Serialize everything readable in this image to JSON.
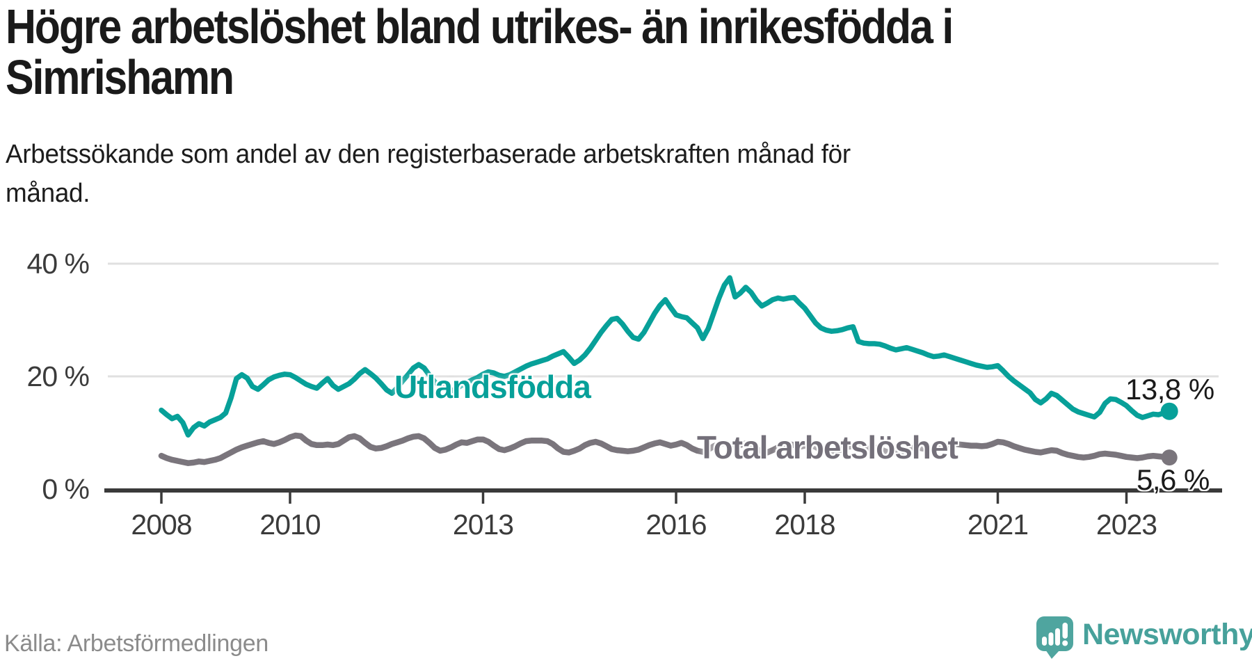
{
  "header": {
    "title_lines": [
      "Högre arbetslöshet bland utrikes- än inrikesfödda i",
      "Simrishamn"
    ],
    "subtitle_lines": [
      "Arbetssökande som andel av den registerbaserade arbetskraften månad för",
      "månad."
    ]
  },
  "footer": {
    "source": "Källa: Arbetsförmedlingen",
    "brand_name": "Newsworthy",
    "brand_icon": "newsworthy-speech-bubble-bar-chart-icon"
  },
  "colors": {
    "series_foreign_born": "#07a099",
    "series_total": "#7a757c",
    "axis": "#3a3a3a",
    "grid": "#e0e0e0",
    "brand_teal": "#4fa59f",
    "text_dark": "#1a1a1a",
    "text_gray": "#8b8b8b"
  },
  "chart_data": {
    "type": "line",
    "title": "Högre arbetslöshet bland utrikes- än inrikesfödda i Simrishamn",
    "subtitle": "Arbetssökande som andel av den registerbaserade arbetskraften månad för månad.",
    "x_unit": "month",
    "x_start": "2008-01",
    "x_end": "2023-09",
    "x_tick_years": [
      2008,
      2010,
      2013,
      2016,
      2018,
      2021,
      2023
    ],
    "y_tick_values": [
      0,
      20,
      40
    ],
    "y_tick_labels": [
      "0 %",
      "20 %",
      "40 %"
    ],
    "ylim": [
      0,
      45
    ],
    "grid": "horizontal",
    "legend": "inline-labels",
    "series": [
      {
        "name": "Utlandsfödda",
        "color": "#07a099",
        "end_label": "13,8 %",
        "end_value": 13.8,
        "values": [
          14.0,
          13.2,
          12.5,
          12.9,
          11.8,
          9.6,
          10.9,
          11.6,
          11.2,
          11.9,
          12.3,
          12.7,
          13.5,
          16.2,
          19.6,
          20.3,
          19.7,
          18.2,
          17.7,
          18.5,
          19.4,
          19.9,
          20.2,
          20.4,
          20.3,
          19.8,
          19.2,
          18.6,
          18.2,
          17.9,
          18.8,
          19.6,
          18.4,
          17.7,
          18.2,
          18.7,
          19.5,
          20.5,
          21.2,
          20.5,
          19.7,
          18.7,
          17.6,
          17.0,
          18.0,
          19.2,
          20.3,
          21.5,
          22.1,
          21.5,
          20.2,
          19.0,
          18.3,
          17.8,
          17.4,
          17.8,
          18.4,
          18.9,
          19.4,
          19.8,
          20.4,
          20.8,
          20.6,
          20.2,
          20.0,
          20.3,
          20.8,
          21.3,
          21.8,
          22.2,
          22.5,
          22.8,
          23.1,
          23.6,
          24.0,
          24.4,
          23.4,
          22.3,
          22.9,
          23.8,
          25.0,
          26.4,
          27.8,
          29.0,
          30.1,
          30.3,
          29.3,
          28.0,
          26.9,
          26.6,
          27.8,
          29.5,
          31.2,
          32.6,
          33.6,
          32.2,
          30.9,
          30.6,
          30.4,
          29.5,
          28.6,
          26.7,
          28.5,
          31.2,
          33.9,
          36.2,
          37.5,
          34.1,
          34.8,
          35.8,
          34.9,
          33.5,
          32.5,
          33.0,
          33.6,
          33.9,
          33.7,
          33.9,
          34.0,
          33.0,
          32.1,
          30.8,
          29.5,
          28.6,
          28.2,
          28.0,
          28.1,
          28.3,
          28.6,
          28.8,
          26.2,
          25.9,
          25.8,
          25.8,
          25.7,
          25.4,
          25.0,
          24.7,
          24.9,
          25.1,
          24.8,
          24.5,
          24.2,
          23.8,
          23.5,
          23.6,
          23.8,
          23.5,
          23.2,
          22.9,
          22.6,
          22.3,
          22.0,
          21.8,
          21.6,
          21.7,
          21.9,
          21.0,
          20.0,
          19.2,
          18.5,
          17.8,
          17.1,
          15.9,
          15.3,
          16.0,
          17.0,
          16.6,
          15.8,
          15.0,
          14.2,
          13.7,
          13.4,
          13.1,
          12.8,
          13.6,
          15.2,
          16.0,
          15.9,
          15.4,
          14.8,
          13.9,
          13.1,
          12.7,
          13.0,
          13.3,
          13.2,
          13.5,
          13.8
        ]
      },
      {
        "name": "Total arbetslöshet",
        "color": "#7a757c",
        "end_label": "5,6 %",
        "end_value": 5.6,
        "values": [
          5.9,
          5.5,
          5.2,
          5.0,
          4.8,
          4.6,
          4.7,
          4.9,
          4.8,
          5.0,
          5.2,
          5.5,
          6.0,
          6.5,
          7.0,
          7.4,
          7.7,
          8.0,
          8.3,
          8.5,
          8.2,
          8.0,
          8.3,
          8.7,
          9.2,
          9.5,
          9.4,
          8.6,
          8.0,
          7.8,
          7.8,
          7.9,
          7.8,
          8.0,
          8.6,
          9.2,
          9.4,
          9.0,
          8.2,
          7.5,
          7.2,
          7.3,
          7.6,
          8.0,
          8.3,
          8.6,
          9.0,
          9.3,
          9.4,
          9.0,
          8.2,
          7.3,
          6.8,
          7.0,
          7.4,
          7.9,
          8.3,
          8.2,
          8.5,
          8.8,
          8.8,
          8.4,
          7.7,
          7.1,
          6.9,
          7.2,
          7.6,
          8.1,
          8.5,
          8.6,
          8.6,
          8.6,
          8.5,
          8.0,
          7.2,
          6.6,
          6.5,
          6.8,
          7.2,
          7.8,
          8.2,
          8.4,
          8.1,
          7.6,
          7.1,
          6.9,
          6.8,
          6.7,
          6.8,
          7.0,
          7.4,
          7.8,
          8.1,
          8.3,
          8.0,
          7.7,
          7.9,
          8.2,
          7.8,
          7.2,
          6.8,
          6.6,
          7.0,
          7.6,
          8.0,
          8.2,
          7.9,
          7.6,
          7.8,
          8.1,
          7.7,
          7.1,
          6.7,
          6.5,
          6.9,
          7.4,
          7.8,
          8.0,
          7.8,
          7.5,
          7.7,
          7.9,
          7.5,
          7.0,
          6.6,
          6.4,
          6.7,
          7.1,
          7.5,
          7.6,
          7.3,
          7.0,
          7.2,
          7.4,
          7.1,
          6.7,
          6.4,
          6.3,
          6.6,
          7.0,
          7.3,
          7.4,
          7.2,
          7.1,
          7.3,
          7.5,
          7.7,
          7.9,
          8.0,
          7.9,
          7.8,
          7.7,
          7.7,
          7.6,
          7.7,
          8.0,
          8.4,
          8.3,
          8.0,
          7.6,
          7.3,
          7.0,
          6.8,
          6.6,
          6.5,
          6.7,
          6.9,
          6.8,
          6.4,
          6.1,
          5.9,
          5.7,
          5.6,
          5.7,
          5.9,
          6.2,
          6.3,
          6.2,
          6.1,
          5.9,
          5.7,
          5.6,
          5.5,
          5.6,
          5.8,
          5.9,
          5.8,
          5.7,
          5.6
        ]
      }
    ]
  }
}
